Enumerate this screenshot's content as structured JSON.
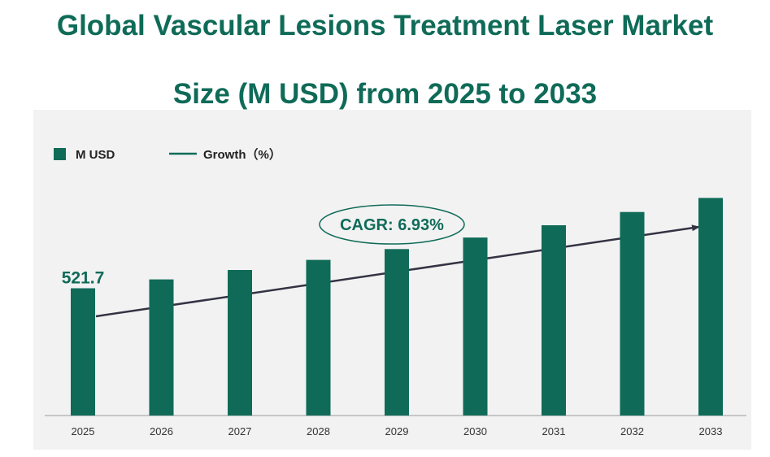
{
  "title": {
    "line1": "Global Vascular Lesions Treatment Laser Market",
    "line2": "Size (M USD) from 2025 to 2033"
  },
  "colors": {
    "bar": "#0f6b58",
    "title": "#0f6b58",
    "panel": "#f2f2f2",
    "arrow": "#333344"
  },
  "chart_data": {
    "type": "bar",
    "title": "Global Vascular Lesions Treatment Laser Market Size (M USD) from 2025 to 2033",
    "categories": [
      "2025",
      "2026",
      "2027",
      "2028",
      "2029",
      "2030",
      "2031",
      "2032",
      "2033"
    ],
    "series": [
      {
        "name": "M USD",
        "values": [
          521.7,
          557.9,
          596.6,
          638.0,
          682.2,
          729.5,
          780.1,
          834.2,
          892.0
        ]
      }
    ],
    "data_labels": {
      "2025": "521.7"
    },
    "legend": [
      {
        "label": "M USD",
        "kind": "bar"
      },
      {
        "label": "Growth（%）",
        "kind": "line"
      }
    ],
    "legend_position": "top-left",
    "annotation": "CAGR: 6.93%",
    "xlabel": "",
    "ylabel": "",
    "ylim": [
      0,
      1000
    ],
    "grid": false
  }
}
